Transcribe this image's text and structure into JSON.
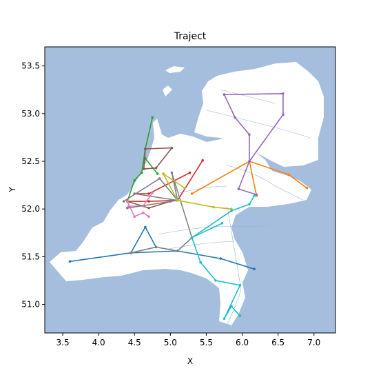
{
  "chart_data": {
    "type": "line",
    "title": "Traject",
    "xlabel": "X",
    "ylabel": "Y",
    "xlim": [
      3.25,
      7.3
    ],
    "ylim": [
      50.7,
      53.7
    ],
    "xticks": [
      "3.5",
      "4.0",
      "4.5",
      "5.0",
      "5.5",
      "6.0",
      "6.5",
      "7.0"
    ],
    "yticks": [
      "51.0",
      "51.5",
      "52.0",
      "52.5",
      "53.0",
      "53.5"
    ],
    "grid": false,
    "legend": "none",
    "colors": {
      "sea": "#a6bedd",
      "land": "#ffffff",
      "rivers": "#8fb2dc",
      "frame": "#000000"
    },
    "series": [
      {
        "color": "#1f77b4",
        "x": [
          3.6,
          4.45,
          5.1,
          5.7,
          6.17
        ],
        "y": [
          51.45,
          51.54,
          51.56,
          51.48,
          51.37
        ]
      },
      {
        "color": "#1f77b4",
        "x": [
          4.45,
          4.65,
          4.8
        ],
        "y": [
          51.54,
          51.81,
          51.6
        ]
      },
      {
        "color": "#ff7f0e",
        "x": [
          5.3,
          6.1,
          6.65,
          6.9
        ],
        "y": [
          52.16,
          52.5,
          52.36,
          52.22
        ]
      },
      {
        "color": "#ff7f0e",
        "x": [
          6.1,
          6.2
        ],
        "y": [
          52.5,
          52.14
        ]
      },
      {
        "color": "#2ca02c",
        "x": [
          4.75,
          4.65,
          4.6,
          4.5,
          4.4
        ],
        "y": [
          52.96,
          52.63,
          52.38,
          52.3,
          52.08
        ]
      },
      {
        "color": "#2ca02c",
        "x": [
          4.65,
          4.82
        ],
        "y": [
          52.53,
          52.37
        ]
      },
      {
        "color": "#d62728",
        "x": [
          4.4,
          4.7,
          5.1,
          5.45
        ],
        "y": [
          52.08,
          52.08,
          52.09,
          52.51
        ]
      },
      {
        "color": "#d62728",
        "x": [
          4.5,
          4.7,
          5.27
        ],
        "y": [
          52.16,
          52.16,
          52.38
        ]
      },
      {
        "color": "#9467bd",
        "x": [
          5.75,
          6.57,
          6.57,
          6.1,
          6.1,
          5.9,
          5.75
        ],
        "y": [
          53.2,
          53.21,
          52.99,
          52.5,
          52.78,
          52.96,
          53.2
        ]
      },
      {
        "color": "#9467bd",
        "x": [
          6.1,
          5.95,
          6.2
        ],
        "y": [
          52.5,
          52.21,
          52.15
        ]
      },
      {
        "color": "#8c564b",
        "x": [
          4.65,
          5.02,
          4.8,
          4.63,
          4.65
        ],
        "y": [
          52.63,
          52.64,
          52.43,
          52.42,
          52.63
        ]
      },
      {
        "color": "#8c564b",
        "x": [
          4.4,
          4.7,
          5.0
        ],
        "y": [
          52.08,
          52.01,
          52.08
        ]
      },
      {
        "color": "#e377c2",
        "x": [
          4.4,
          4.5,
          4.62,
          4.7
        ],
        "y": [
          52.08,
          51.92,
          51.96,
          51.92
        ]
      },
      {
        "color": "#e377c2",
        "x": [
          4.42,
          4.62,
          4.75
        ],
        "y": [
          52.03,
          52.03,
          52.17
        ]
      },
      {
        "color": "#7f7f7f",
        "x": [
          4.35,
          4.85,
          5.1,
          5.02,
          5.3,
          5.1,
          4.8,
          4.45
        ],
        "y": [
          52.08,
          52.32,
          52.09,
          52.38,
          51.7,
          51.56,
          51.6,
          51.54
        ]
      },
      {
        "color": "#7f7f7f",
        "x": [
          4.5,
          5.1,
          4.4
        ],
        "y": [
          52.16,
          52.09,
          52.01
        ]
      },
      {
        "color": "#bcbd22",
        "x": [
          4.9,
          5.1,
          5.6,
          5.85
        ],
        "y": [
          52.37,
          52.09,
          52.02,
          52.0
        ]
      },
      {
        "color": "#bcbd22",
        "x": [
          4.9,
          5.2
        ],
        "y": [
          52.37,
          52.22
        ]
      },
      {
        "color": "#17becf",
        "x": [
          6.17,
          6.1,
          5.85,
          5.3,
          5.42,
          5.63,
          5.97,
          5.75,
          5.85,
          5.97
        ],
        "y": [
          52.14,
          52.05,
          51.98,
          51.7,
          51.44,
          51.25,
          51.2,
          50.85,
          50.98,
          50.88
        ]
      },
      {
        "color": "#17becf",
        "x": [
          5.3,
          5.72
        ],
        "y": [
          51.7,
          51.85
        ]
      }
    ]
  }
}
